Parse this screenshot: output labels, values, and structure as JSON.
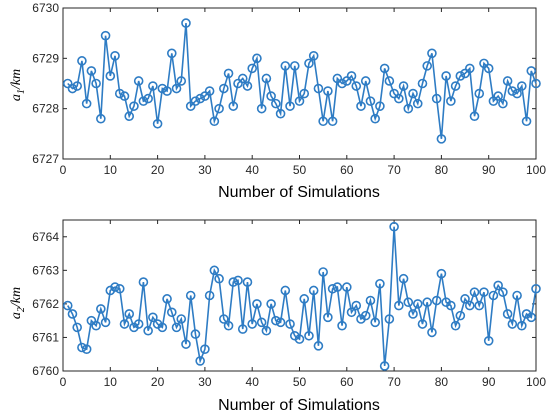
{
  "colors": {
    "series": "#2e7cc4",
    "axis": "#262626"
  },
  "chart_data": [
    {
      "type": "line",
      "marker": "circle",
      "xlabel": "Number of Simulations",
      "ylabel": "a1/km",
      "ylabel_main": "a",
      "ylabel_sub": "1",
      "ylabel_unit": "/km",
      "xlim": [
        0,
        100
      ],
      "ylim": [
        6727,
        6730
      ],
      "xticks": [
        "0",
        "10",
        "20",
        "30",
        "40",
        "50",
        "60",
        "70",
        "80",
        "90",
        "100"
      ],
      "yticks": [
        "6727",
        "6728",
        "6729",
        "6730"
      ],
      "grid": false,
      "x": [
        1,
        2,
        3,
        4,
        5,
        6,
        7,
        8,
        9,
        10,
        11,
        12,
        13,
        14,
        15,
        16,
        17,
        18,
        19,
        20,
        21,
        22,
        23,
        24,
        25,
        26,
        27,
        28,
        29,
        30,
        31,
        32,
        33,
        34,
        35,
        36,
        37,
        38,
        39,
        40,
        41,
        42,
        43,
        44,
        45,
        46,
        47,
        48,
        49,
        50,
        51,
        52,
        53,
        54,
        55,
        56,
        57,
        58,
        59,
        60,
        61,
        62,
        63,
        64,
        65,
        66,
        67,
        68,
        69,
        70,
        71,
        72,
        73,
        74,
        75,
        76,
        77,
        78,
        79,
        80,
        81,
        82,
        83,
        84,
        85,
        86,
        87,
        88,
        89,
        90,
        91,
        92,
        93,
        94,
        95,
        96,
        97,
        98,
        99,
        100
      ],
      "y": [
        6728.5,
        6728.4,
        6728.45,
        6728.95,
        6728.1,
        6728.75,
        6728.5,
        6727.8,
        6729.45,
        6728.65,
        6729.05,
        6728.3,
        6728.25,
        6727.85,
        6728.05,
        6728.55,
        6728.15,
        6728.2,
        6728.45,
        6727.7,
        6728.4,
        6728.35,
        6729.1,
        6728.4,
        6728.55,
        6729.7,
        6728.05,
        6728.15,
        6728.2,
        6728.25,
        6728.35,
        6727.75,
        6728.0,
        6728.4,
        6728.7,
        6728.05,
        6728.5,
        6728.6,
        6728.45,
        6728.8,
        6729.0,
        6728.0,
        6728.6,
        6728.25,
        6728.1,
        6727.9,
        6728.85,
        6728.05,
        6728.85,
        6728.15,
        6728.3,
        6728.9,
        6729.05,
        6728.4,
        6727.75,
        6728.35,
        6727.75,
        6728.6,
        6728.5,
        6728.55,
        6728.65,
        6728.45,
        6728.05,
        6728.55,
        6728.15,
        6727.8,
        6728.05,
        6728.8,
        6728.55,
        6728.3,
        6728.2,
        6728.45,
        6728.0,
        6728.3,
        6728.1,
        6728.5,
        6728.85,
        6729.1,
        6728.2,
        6727.4,
        6728.65,
        6728.15,
        6728.45,
        6728.65,
        6728.7,
        6728.8,
        6727.85,
        6728.3,
        6728.9,
        6728.8,
        6728.15,
        6728.25,
        6728.1,
        6728.55,
        6728.35,
        6728.3,
        6728.45,
        6727.75,
        6728.75,
        6728.5
      ]
    },
    {
      "type": "line",
      "marker": "circle",
      "xlabel": "Number of Simulations",
      "ylabel": "a2/km",
      "ylabel_main": "a",
      "ylabel_sub": "2",
      "ylabel_unit": "/km",
      "xlim": [
        0,
        100
      ],
      "ylim": [
        6760,
        6764.5
      ],
      "xticks": [
        "0",
        "10",
        "20",
        "30",
        "40",
        "50",
        "60",
        "70",
        "80",
        "90",
        "100"
      ],
      "yticks": [
        "6760",
        "6761",
        "6762",
        "6763",
        "6764"
      ],
      "grid": false,
      "x": [
        1,
        2,
        3,
        4,
        5,
        6,
        7,
        8,
        9,
        10,
        11,
        12,
        13,
        14,
        15,
        16,
        17,
        18,
        19,
        20,
        21,
        22,
        23,
        24,
        25,
        26,
        27,
        28,
        29,
        30,
        31,
        32,
        33,
        34,
        35,
        36,
        37,
        38,
        39,
        40,
        41,
        42,
        43,
        44,
        45,
        46,
        47,
        48,
        49,
        50,
        51,
        52,
        53,
        54,
        55,
        56,
        57,
        58,
        59,
        60,
        61,
        62,
        63,
        64,
        65,
        66,
        67,
        68,
        69,
        70,
        71,
        72,
        73,
        74,
        75,
        76,
        77,
        78,
        79,
        80,
        81,
        82,
        83,
        84,
        85,
        86,
        87,
        88,
        89,
        90,
        91,
        92,
        93,
        94,
        95,
        96,
        97,
        98,
        99,
        100
      ],
      "y": [
        6761.95,
        6761.7,
        6761.3,
        6760.7,
        6760.65,
        6761.5,
        6761.35,
        6761.85,
        6761.45,
        6762.4,
        6762.5,
        6762.45,
        6761.4,
        6761.7,
        6761.3,
        6761.4,
        6762.65,
        6761.2,
        6761.6,
        6761.4,
        6761.3,
        6762.15,
        6761.75,
        6761.3,
        6761.55,
        6760.8,
        6762.25,
        6761.1,
        6760.3,
        6760.65,
        6762.25,
        6763.0,
        6762.75,
        6761.55,
        6761.35,
        6762.65,
        6762.7,
        6761.25,
        6762.65,
        6761.4,
        6762.0,
        6761.45,
        6761.2,
        6762.0,
        6761.5,
        6761.45,
        6762.4,
        6761.4,
        6761.05,
        6760.95,
        6762.15,
        6761.05,
        6762.4,
        6760.75,
        6762.95,
        6761.6,
        6762.45,
        6762.5,
        6761.35,
        6762.5,
        6761.75,
        6761.95,
        6761.55,
        6761.65,
        6762.1,
        6761.45,
        6762.6,
        6760.15,
        6761.55,
        6764.3,
        6761.95,
        6762.75,
        6762.05,
        6761.7,
        6762.0,
        6761.4,
        6762.05,
        6761.15,
        6762.1,
        6762.9,
        6762.05,
        6761.95,
        6761.35,
        6761.65,
        6762.15,
        6761.95,
        6762.35,
        6761.95,
        6762.35,
        6760.9,
        6762.25,
        6762.55,
        6762.35,
        6761.7,
        6761.4,
        6762.25,
        6761.35,
        6761.7,
        6761.6,
        6762.45
      ]
    }
  ]
}
